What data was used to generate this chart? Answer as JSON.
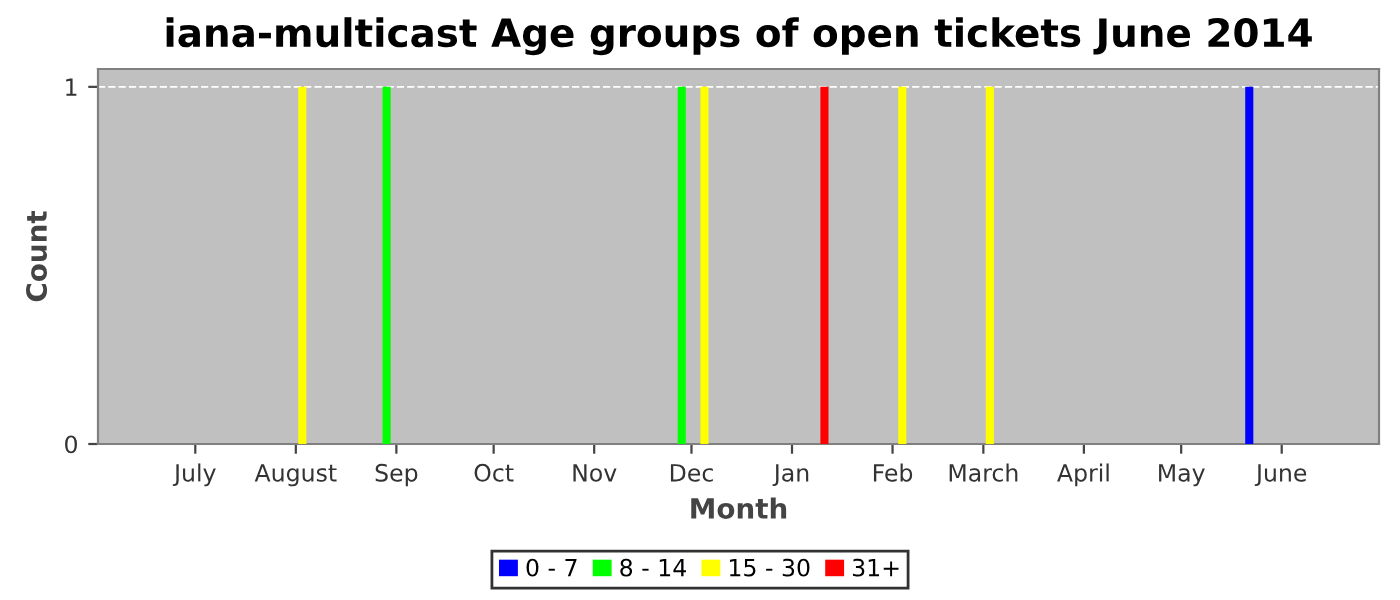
{
  "chart_data": {
    "type": "bar",
    "title": "iana-multicast Age groups of open tickets June 2014",
    "xlabel": "Month",
    "ylabel": "Count",
    "series": [
      {
        "name": "0 - 7",
        "color": "#0000ff",
        "x": [
          "2014-05-22"
        ],
        "values": [
          1
        ]
      },
      {
        "name": "8 - 14",
        "color": "#00ff00",
        "x": [
          "2013-08-29",
          "2013-11-28"
        ],
        "values": [
          1,
          1
        ]
      },
      {
        "name": "15 - 30",
        "color": "#ffff00",
        "x": [
          "2013-08-03",
          "2013-12-05",
          "2014-02-04",
          "2014-03-03"
        ],
        "values": [
          1,
          1,
          1,
          1
        ]
      },
      {
        "name": "31+",
        "color": "#ff0000",
        "x": [
          "2014-01-11"
        ],
        "values": [
          1
        ]
      }
    ],
    "xlim": [
      "2013-06-01",
      "2014-07-01"
    ],
    "xticks": [
      {
        "value": "2013-07-01",
        "label": "July"
      },
      {
        "value": "2013-08-01",
        "label": "August"
      },
      {
        "value": "2013-09-01",
        "label": "Sep"
      },
      {
        "value": "2013-10-01",
        "label": "Oct"
      },
      {
        "value": "2013-11-01",
        "label": "Nov"
      },
      {
        "value": "2013-12-01",
        "label": "Dec"
      },
      {
        "value": "2014-01-01",
        "label": "Jan"
      },
      {
        "value": "2014-02-01",
        "label": "Feb"
      },
      {
        "value": "2014-03-01",
        "label": "March"
      },
      {
        "value": "2014-04-01",
        "label": "April"
      },
      {
        "value": "2014-05-01",
        "label": "May"
      },
      {
        "value": "2014-06-01",
        "label": "June"
      }
    ],
    "ylim": [
      0,
      1.05
    ],
    "yticks": [
      0,
      1
    ],
    "grid": "y",
    "legend": "bottom"
  }
}
